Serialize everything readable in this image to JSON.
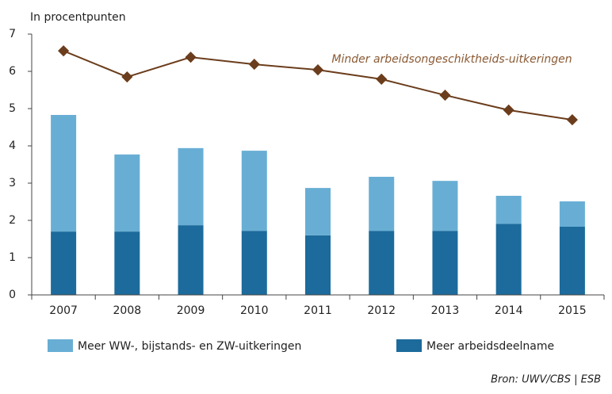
{
  "chart_data": {
    "type": "bar",
    "stacked": true,
    "y_label": "In procentpunten",
    "source": "Bron: UWV/CBS | ESB",
    "categories": [
      "2007",
      "2008",
      "2009",
      "2010",
      "2011",
      "2012",
      "2013",
      "2014",
      "2015"
    ],
    "series": [
      {
        "name": "Meer WW-, bijstands- en ZW-uitkeringen",
        "color": "#68aed4",
        "values": [
          3.13,
          2.07,
          2.07,
          2.15,
          1.27,
          1.45,
          1.34,
          0.75,
          0.68
        ]
      },
      {
        "name": "Meer arbeidsdeelname",
        "color": "#1c6b9c",
        "values": [
          1.7,
          1.7,
          1.87,
          1.72,
          1.6,
          1.72,
          1.72,
          1.91,
          1.83
        ]
      },
      {
        "name": "Minder arbeidsongeschiktheids-uitkeringen",
        "type": "line",
        "color": "#6b3d1c",
        "label_color": "#8a5a34",
        "values": [
          6.55,
          5.85,
          6.38,
          6.19,
          6.04,
          5.79,
          5.36,
          4.96,
          4.7
        ]
      }
    ],
    "ylim": [
      0,
      7
    ],
    "yticks": [
      0,
      1,
      2,
      3,
      4,
      5,
      6,
      7
    ]
  }
}
